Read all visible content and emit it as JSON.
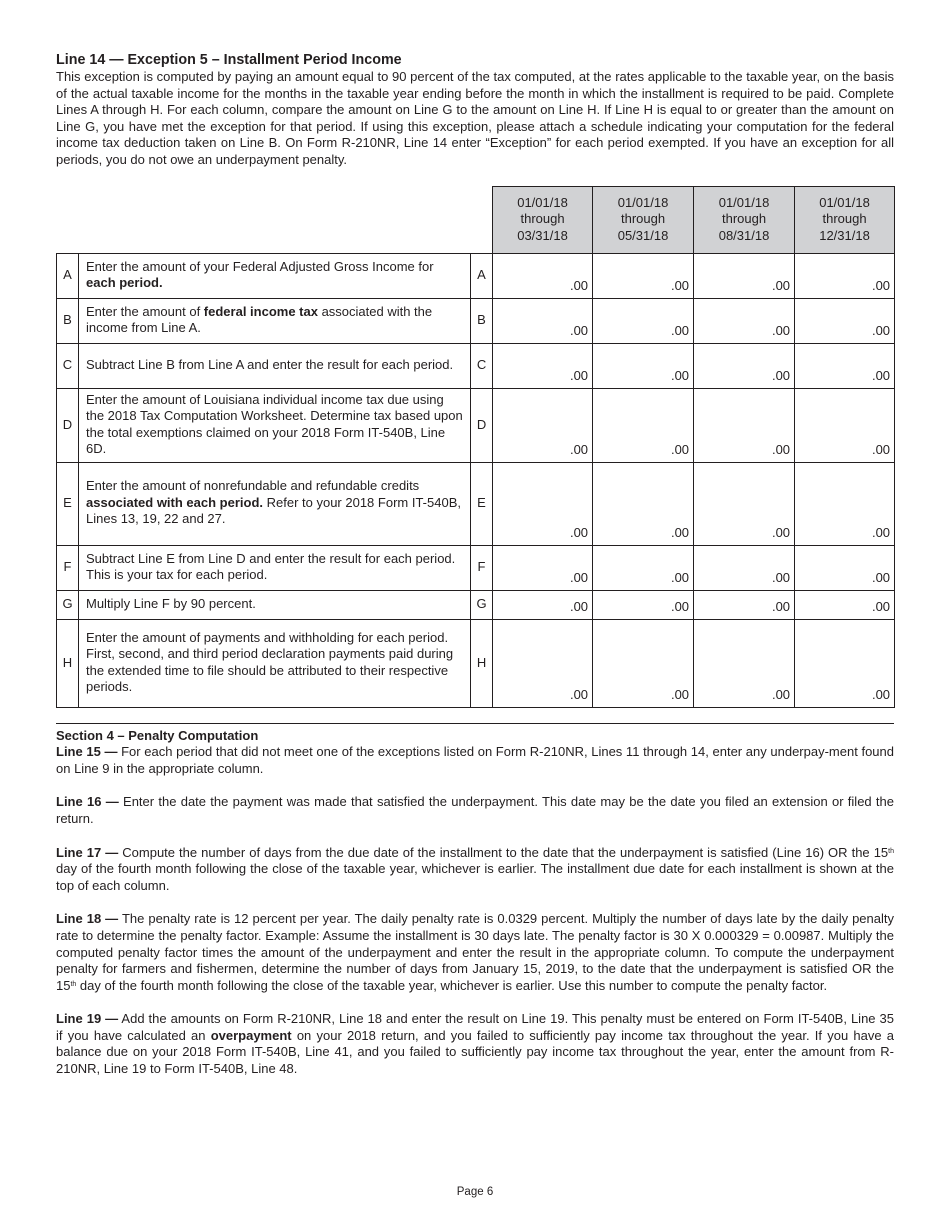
{
  "line14": {
    "title": "Line 14 — Exception 5 – Installment Period Income",
    "body": "This exception is computed by paying an amount equal to 90 percent of the tax computed, at the rates applicable to the taxable year, on the basis of the actual taxable income for the months in the taxable year ending before the month in which the installment is required to be paid. Complete Lines A through H. For each column, compare the amount on Line G to the amount on Line H. If Line H is equal to or greater than the amount on Line G, you have met the exception for that period. If using this exception, please attach a schedule indicating your computation for the federal income tax deduction taken on Line B. On Form R-210NR, Line 14 enter “Exception” for each period exempted. If you have an exception for all periods, you do not owe an underpayment penalty."
  },
  "table": {
    "columns": [
      {
        "l1": "01/01/18",
        "l2": "through",
        "l3": "03/31/18"
      },
      {
        "l1": "01/01/18",
        "l2": "through",
        "l3": "05/31/18"
      },
      {
        "l1": "01/01/18",
        "l2": "through",
        "l3": "08/31/18"
      },
      {
        "l1": "01/01/18",
        "l2": "through",
        "l3": "12/31/18"
      }
    ],
    "rows": [
      {
        "letter": "A",
        "segs": [
          {
            "t": "Enter the amount of your Federal Adjusted Gross Income for "
          },
          {
            "t": "each period.",
            "b": true
          }
        ],
        "values": [
          ".00",
          ".00",
          ".00",
          ".00"
        ]
      },
      {
        "letter": "B",
        "segs": [
          {
            "t": "Enter the amount of "
          },
          {
            "t": "federal income tax",
            "b": true
          },
          {
            "t": " associated with the income from Line A."
          }
        ],
        "values": [
          ".00",
          ".00",
          ".00",
          ".00"
        ]
      },
      {
        "letter": "C",
        "segs": [
          {
            "t": "Subtract Line B from Line A and enter the result for each period."
          }
        ],
        "values": [
          ".00",
          ".00",
          ".00",
          ".00"
        ]
      },
      {
        "letter": "D",
        "segs": [
          {
            "t": "Enter the amount of Louisiana individual income tax due using the 2018 Tax Computation Worksheet. Determine tax based upon the total exemptions claimed on your 2018 Form IT-540B, Line 6D."
          }
        ],
        "values": [
          ".00",
          ".00",
          ".00",
          ".00"
        ]
      },
      {
        "letter": "E",
        "segs": [
          {
            "t": "Enter the amount of nonrefundable and refundable credits "
          },
          {
            "t": "associated with each period.",
            "b": true
          },
          {
            "t": " Refer to your 2018 Form IT-540B, Lines 13, 19, 22 and 27."
          }
        ],
        "values": [
          ".00",
          ".00",
          ".00",
          ".00"
        ]
      },
      {
        "letter": "F",
        "segs": [
          {
            "t": "Subtract Line E from Line D and enter the result for each period. This is your tax for each period."
          }
        ],
        "values": [
          ".00",
          ".00",
          ".00",
          ".00"
        ]
      },
      {
        "letter": "G",
        "segs": [
          {
            "t": "Multiply Line F by 90 percent."
          }
        ],
        "values": [
          ".00",
          ".00",
          ".00",
          ".00"
        ]
      },
      {
        "letter": "H",
        "segs": [
          {
            "t": "Enter the amount of payments and withholding for each period. First, second, and third period declaration payments paid during the extended time to file should be attributed to their respective periods."
          }
        ],
        "values": [
          ".00",
          ".00",
          ".00",
          ".00"
        ]
      }
    ]
  },
  "section4": {
    "title": "Section 4 – Penalty Computation",
    "paragraphs": [
      {
        "segs": [
          {
            "t": "Line 15 —",
            "b": true
          },
          {
            "t": " For each period that did not meet one of the exceptions listed on Form R-210NR, Lines 11 through 14, enter any underpay-ment found on Line 9 in the appropriate column."
          }
        ]
      },
      {
        "segs": [
          {
            "t": "Line 16 —",
            "b": true
          },
          {
            "t": " Enter the date the payment was made that satisfied the underpayment. This date may be the date you filed an extension or filed the return."
          }
        ]
      },
      {
        "segs": [
          {
            "t": "Line 17 —",
            "b": true
          },
          {
            "t": " Compute the number of days from the due date of the installment to the date that the underpayment is satisfied (Line 16) OR the 15"
          },
          {
            "t": "th",
            "sup": true
          },
          {
            "t": " day of the fourth month following the close of the taxable year, whichever is earlier. The installment due date for each installment is shown at the top of each column."
          }
        ]
      },
      {
        "segs": [
          {
            "t": "Line 18 —",
            "b": true
          },
          {
            "t": " The penalty rate is 12 percent per year. The daily penalty rate is 0.0329 percent. Multiply the number of days late by the daily penalty rate to determine the penalty factor. Example: Assume the installment is 30 days late. The penalty factor is 30 X 0.000329 = 0.00987. Multiply the computed penalty factor times the amount of the underpayment and enter the result in the appropriate column. To compute the underpayment penalty for farmers and fishermen, determine the number of days from January 15, 2019, to the date that the underpayment is satisfied OR the 15"
          },
          {
            "t": "th",
            "sup": true
          },
          {
            "t": " day of the fourth month following the close of the taxable year, whichever is earlier. Use this number to compute the penalty factor."
          }
        ]
      },
      {
        "segs": [
          {
            "t": "Line 19 —",
            "b": true
          },
          {
            "t": " Add the amounts on Form R-210NR, Line 18 and enter the result on Line 19. This penalty must be entered on Form IT-540B, Line 35 if you have calculated an "
          },
          {
            "t": "overpayment",
            "b": true
          },
          {
            "t": " on your 2018 return, and you failed to sufficiently pay income tax throughout the year. If you have a balance due on your 2018 Form IT-540B, Line 41, and you failed to sufficiently pay income tax throughout the year, enter the amount from R-210NR, Line 19 to Form IT-540B, Line 48."
          }
        ]
      }
    ]
  },
  "footer": {
    "page": "Page 6"
  }
}
